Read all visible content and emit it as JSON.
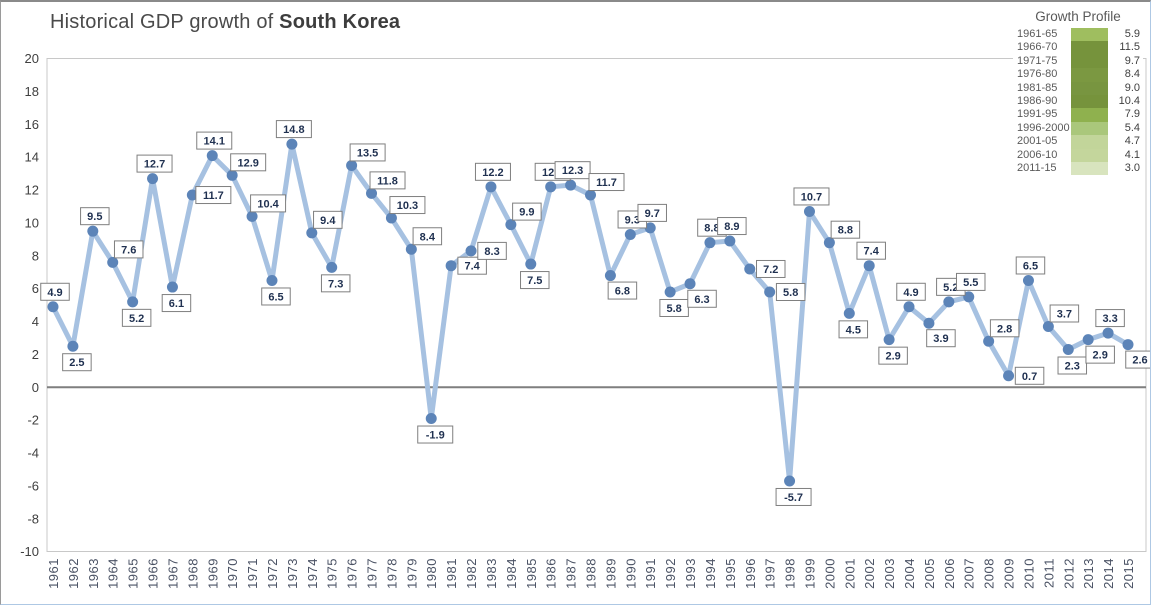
{
  "title": {
    "prefix": "Historical GDP growth of ",
    "bold": "South Korea"
  },
  "colors": {
    "line": "#a6c1e1",
    "marker": "#5c84b8",
    "label_text": "#1f3050",
    "label_border": "#7f7f7f",
    "label_bg": "#ffffff",
    "zero_line": "#7f7f7f",
    "plot_border": "#c8c8c8",
    "y_axis_text": "#3f3f3f",
    "x_axis_text": "#4a5264",
    "title_text": "#4a4a4a"
  },
  "chart_data": [
    {
      "type": "line",
      "title": "Historical GDP growth of South Korea",
      "xlabel": "",
      "ylabel": "",
      "ylim": [
        -10,
        20
      ],
      "ytick_step": 2,
      "grid": false,
      "x": [
        "1961",
        "1962",
        "1963",
        "1964",
        "1965",
        "1966",
        "1967",
        "1968",
        "1969",
        "1970",
        "1971",
        "1972",
        "1973",
        "1974",
        "1975",
        "1976",
        "1977",
        "1978",
        "1979",
        "1980",
        "1981",
        "1982",
        "1983",
        "1984",
        "1985",
        "1986",
        "1987",
        "1988",
        "1989",
        "1990",
        "1991",
        "1992",
        "1993",
        "1994",
        "1995",
        "1996",
        "1997",
        "1998",
        "1999",
        "2000",
        "2001",
        "2002",
        "2003",
        "2004",
        "2005",
        "2006",
        "2007",
        "2008",
        "2009",
        "2010",
        "2011",
        "2012",
        "2013",
        "2014",
        "2015"
      ],
      "values": [
        4.9,
        2.5,
        9.5,
        7.6,
        5.2,
        12.7,
        6.1,
        11.7,
        14.1,
        12.9,
        10.4,
        6.5,
        14.8,
        9.4,
        7.3,
        13.5,
        11.8,
        10.3,
        8.4,
        -1.9,
        7.4,
        8.3,
        12.2,
        9.9,
        7.5,
        12.2,
        12.3,
        11.7,
        6.8,
        9.3,
        9.7,
        5.8,
        6.3,
        8.8,
        8.9,
        7.2,
        5.8,
        -5.7,
        10.7,
        8.8,
        4.5,
        7.4,
        2.9,
        4.9,
        3.9,
        5.2,
        5.5,
        2.8,
        0.7,
        6.5,
        3.7,
        2.3,
        2.9,
        3.3,
        2.6
      ],
      "label_positions": [
        "above",
        "below",
        "above",
        "above-right",
        "below",
        "above",
        "below",
        "right",
        "above",
        "above-right",
        "above-right",
        "below",
        "above",
        "above-right",
        "below",
        "above-right",
        "above-right",
        "above-right",
        "above-right",
        "below",
        "right",
        "right",
        "above",
        "above-right",
        "below",
        "above",
        "above",
        "above-right",
        "below-right",
        "above",
        "above",
        "below",
        "below-right",
        "above",
        "above",
        "right",
        "right",
        "below",
        "above",
        "above-right",
        "below",
        "above",
        "below",
        "above",
        "below-right",
        "above",
        "above",
        "above-right",
        "right",
        "above",
        "above-right",
        "below",
        "below-right",
        "above",
        "below-right"
      ]
    },
    {
      "type": "table",
      "title": "Growth Profile",
      "categories": [
        "1961-65",
        "1966-70",
        "1971-75",
        "1976-80",
        "1981-85",
        "1986-90",
        "1991-95",
        "1996-2000",
        "2001-05",
        "2006-10",
        "2011-15"
      ],
      "values": [
        "5.9",
        "11.5",
        "9.7",
        "8.4",
        "9.0",
        "10.4",
        "7.9",
        "5.4",
        "4.7",
        "4.1",
        "3.0"
      ],
      "colors": [
        "#9fbe5f",
        "#76933c",
        "#76933c",
        "#7b9841",
        "#789540",
        "#76933c",
        "#8fb14e",
        "#aac77b",
        "#c2d59a",
        "#c4d69c",
        "#d8e4be"
      ]
    }
  ]
}
